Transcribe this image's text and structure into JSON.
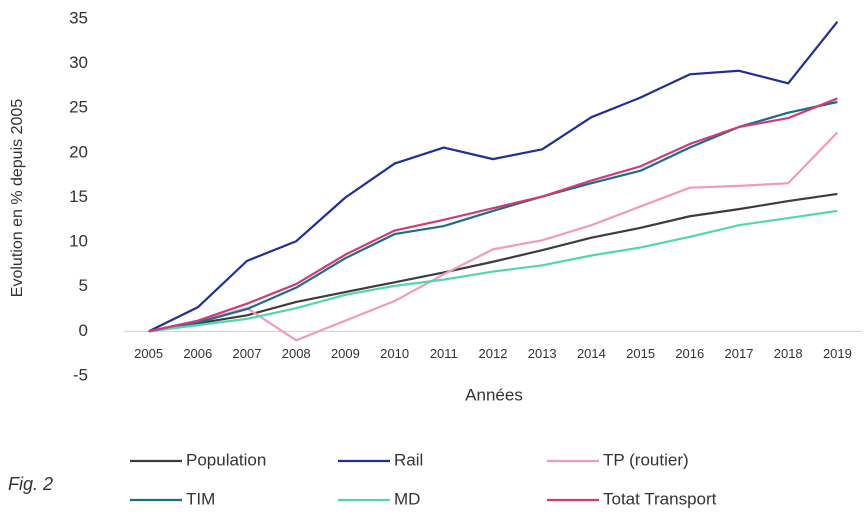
{
  "chart_data": {
    "type": "line",
    "y_label": "Evolution en % depuis 2005",
    "x_label": "Années",
    "annotation": "Fig. 2",
    "categories": [
      "2005",
      "2006",
      "2007",
      "2008",
      "2009",
      "2010",
      "2011",
      "2012",
      "2013",
      "2014",
      "2015",
      "2016",
      "2017",
      "2018",
      "2019"
    ],
    "ylim": [
      -5,
      35
    ],
    "yticks": [
      -5,
      0,
      5,
      10,
      15,
      20,
      25,
      30,
      35
    ],
    "grid": false,
    "legend": "bottom",
    "series": [
      {
        "name": "Population",
        "color": "#3d3d3d",
        "values": [
          0,
          0.9,
          1.8,
          3.3,
          4.4,
          5.5,
          6.6,
          7.8,
          9.1,
          10.5,
          11.6,
          12.9,
          13.7,
          14.6,
          15.4
        ]
      },
      {
        "name": "Rail",
        "color": "#1f2f96",
        "values": [
          0,
          2.7,
          7.9,
          10.1,
          15.0,
          18.8,
          20.6,
          19.3,
          20.4,
          24.0,
          26.2,
          28.8,
          29.2,
          27.8,
          34.7
        ]
      },
      {
        "name": "TP (routier)",
        "color": "#f19ac0",
        "values": [
          0,
          1.1,
          2.6,
          -1.0,
          1.2,
          3.4,
          6.4,
          9.2,
          10.2,
          11.9,
          14.0,
          16.1,
          16.3,
          16.6,
          22.3
        ]
      },
      {
        "name": "TIM",
        "color": "#1a6e8a",
        "values": [
          0,
          1.0,
          2.5,
          4.9,
          8.2,
          10.9,
          11.8,
          13.5,
          15.1,
          16.6,
          18.0,
          20.6,
          22.9,
          24.5,
          25.7
        ]
      },
      {
        "name": "MD",
        "color": "#52d6b0",
        "values": [
          0,
          0.7,
          1.4,
          2.6,
          4.1,
          5.1,
          5.8,
          6.7,
          7.4,
          8.5,
          9.4,
          10.6,
          11.9,
          12.7,
          13.5
        ]
      },
      {
        "name": "Totat Transport",
        "color": "#d13b74",
        "values": [
          0,
          1.2,
          3.1,
          5.3,
          8.6,
          11.3,
          12.5,
          13.8,
          15.1,
          16.9,
          18.5,
          21.0,
          22.9,
          23.9,
          26.1
        ]
      }
    ]
  }
}
